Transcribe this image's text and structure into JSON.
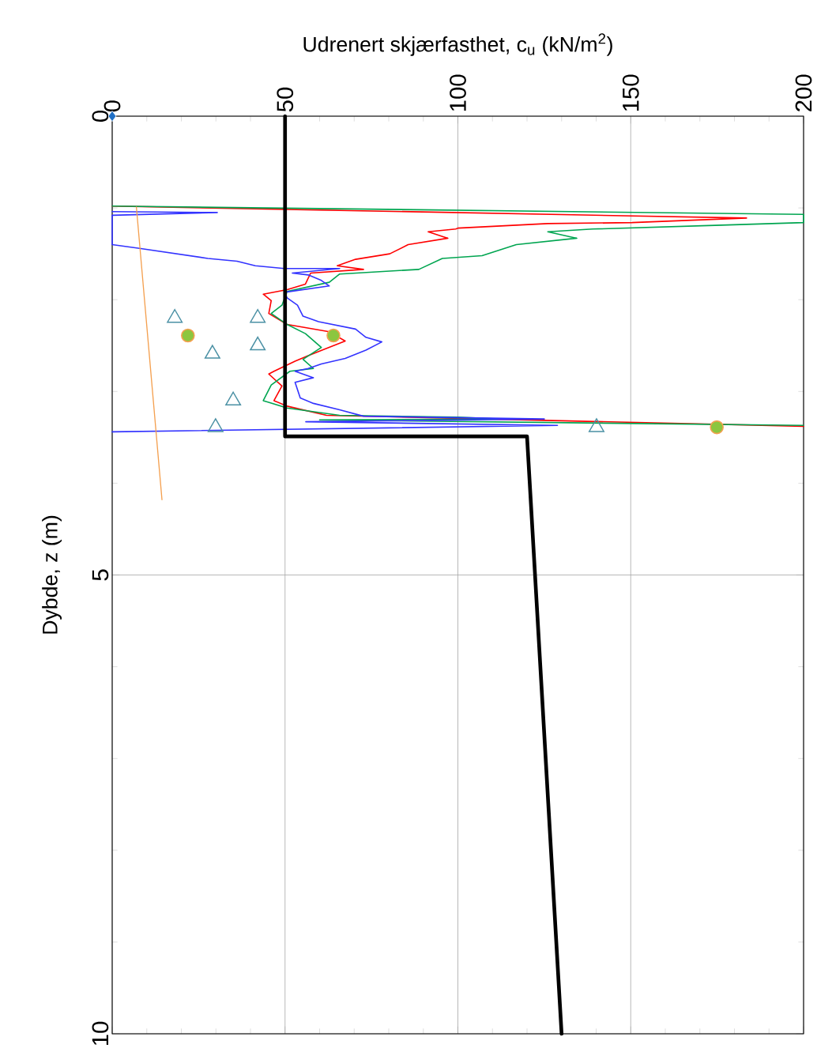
{
  "chart_data": {
    "type": "line",
    "xlabel": "Udrenert skjærfasthet, c$_{u}$ (kN/m$^{2}$)",
    "ylabel": "Dybde, z (m)",
    "xlim": [
      0,
      200
    ],
    "xticks": [
      0,
      50,
      100,
      150,
      200
    ],
    "ylim": [
      10,
      0
    ],
    "yticks": [
      0,
      5,
      10
    ],
    "grid": true,
    "line_style": "solid",
    "series": [
      {
        "color": "#ff0000",
        "marker": "none",
        "x": [
          0,
          183.5,
          150.4,
          126,
          100,
          99.4,
          91.4,
          97.1,
          85.6,
          80.3,
          70.4,
          65.1,
          72.7,
          57.4,
          55.9,
          50.6,
          43.7,
          46.0,
          45.3,
          50.6,
          62.8,
          67.4,
          61.3,
          56.7,
          52.9,
          46.8,
          45.3,
          49.1,
          46.8,
          50.6,
          62,
          200
        ],
        "values": [
          0.98,
          1.11,
          1.16,
          1.17,
          1.22,
          1.23,
          1.26,
          1.33,
          1.4,
          1.5,
          1.56,
          1.63,
          1.67,
          1.71,
          1.83,
          1.89,
          1.94,
          2.01,
          2.15,
          2.27,
          2.35,
          2.45,
          2.54,
          2.61,
          2.67,
          2.78,
          2.81,
          2.94,
          3.1,
          3.16,
          3.26,
          3.38
        ]
      },
      {
        "color": "#00a550",
        "marker": "none",
        "x": [
          0,
          200,
          200,
          174.4,
          139,
          126,
          134.4,
          116.9,
          107,
          95.5,
          88.7,
          65.8,
          62.8,
          50.6,
          49.1,
          46.0,
          50.6,
          55.9,
          60.5,
          55.2,
          58.2,
          51.4,
          46.0,
          43.7,
          50.6,
          65.8,
          100,
          111.5,
          60,
          200
        ],
        "values": [
          0.98,
          1.07,
          1.16,
          1.19,
          1.23,
          1.26,
          1.33,
          1.4,
          1.52,
          1.55,
          1.67,
          1.72,
          1.81,
          1.91,
          2.06,
          2.15,
          2.27,
          2.37,
          2.52,
          2.65,
          2.75,
          2.78,
          2.93,
          3.1,
          3.18,
          3.26,
          3.28,
          3.3,
          3.31,
          3.37
        ]
      },
      {
        "color": "#3333ff",
        "marker": "none",
        "x": [
          0,
          30.4,
          0,
          0,
          7.9,
          27.7,
          36.1,
          41.4,
          49.8,
          65.8,
          52.1,
          56.7,
          60.5,
          62.8,
          49.8,
          50.6,
          53.6,
          55.2,
          59.7,
          70.4,
          73.4,
          78.0,
          73.4,
          67.4,
          60.5,
          56.7,
          52.9,
          58.2,
          52.9,
          54.4,
          58.2,
          65.8,
          72.7,
          125,
          56,
          128.8,
          0
        ],
        "values": [
          1.04,
          1.05,
          1.08,
          1.4,
          1.44,
          1.55,
          1.58,
          1.63,
          1.66,
          1.66,
          1.71,
          1.73,
          1.79,
          1.85,
          1.92,
          1.98,
          2.06,
          2.18,
          2.24,
          2.32,
          2.41,
          2.46,
          2.55,
          2.64,
          2.7,
          2.75,
          2.78,
          2.85,
          2.9,
          3.07,
          3.13,
          3.2,
          3.27,
          3.3,
          3.33,
          3.37,
          3.44
        ]
      },
      {
        "color": "#f4a050",
        "marker": "none",
        "x": [
          7,
          14.4
        ],
        "values": [
          0.99,
          4.18
        ]
      },
      {
        "color": "#000000",
        "marker": "none",
        "x": [
          50,
          50,
          120,
          130
        ],
        "values": [
          0,
          3.49,
          3.49,
          10
        ]
      },
      {
        "type": "scatter",
        "color": "#4a90a4",
        "marker": "triangle",
        "x": [
          18.1,
          42.1,
          42.1,
          29.0,
          35.0,
          29.9,
          140.1
        ],
        "values": [
          2.2,
          2.2,
          2.5,
          2.59,
          3.1,
          3.39,
          3.39
        ]
      },
      {
        "type": "scatter",
        "color": "#8cc63f",
        "marker": "circle",
        "x": [
          21.9,
          64,
          174.9
        ],
        "values": [
          2.39,
          2.39,
          3.39
        ]
      },
      {
        "type": "scatter",
        "color": "#1f6fc5",
        "marker": "diamond",
        "x": [
          0
        ],
        "values": [
          0
        ]
      }
    ]
  }
}
